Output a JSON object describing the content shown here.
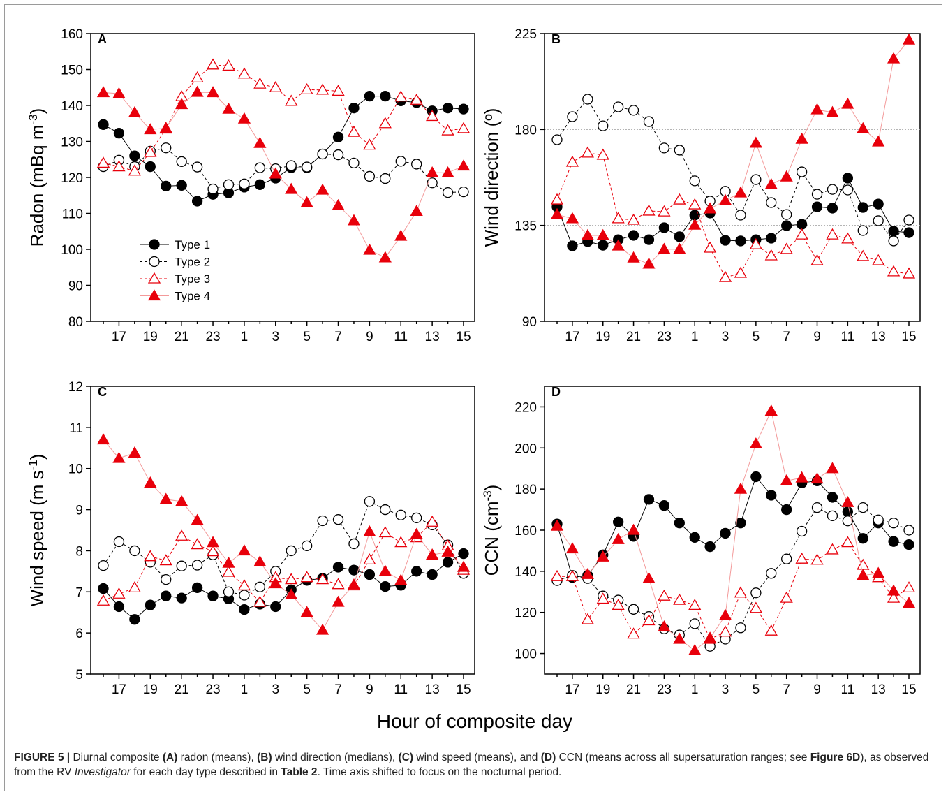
{
  "chart_data": [
    {
      "type": "line",
      "label": "A",
      "ylabel": [
        "Radon (mBq m",
        "-3",
        ")"
      ],
      "categories": [
        null,
        "17",
        null,
        "19",
        null,
        "21",
        null,
        "23",
        null,
        "1",
        null,
        "3",
        null,
        "5",
        null,
        "7",
        null,
        "9",
        null,
        "11",
        null,
        "13",
        null,
        "15"
      ],
      "ylim": [
        80,
        160
      ],
      "yticks": [
        80,
        90,
        100,
        110,
        120,
        130,
        140,
        150,
        160
      ],
      "legend": "lower left",
      "series": [
        {
          "name": "Type 1",
          "color": "#000000",
          "line_color": "#000000",
          "marker": "circle",
          "filled": true,
          "dashed": false,
          "values": [
            134.7,
            132.3,
            126,
            123,
            117.6,
            117.8,
            113.4,
            115.3,
            115.7,
            117.3,
            118,
            119.8,
            122.7,
            122.7,
            126.5,
            131.2,
            139.3,
            142.6,
            142.6,
            141.3,
            140.8,
            138.5,
            139.3,
            139
          ]
        },
        {
          "name": "Type 2",
          "color": "#000000",
          "line_color": "#000000",
          "marker": "circle",
          "filled": false,
          "dashed": true,
          "values": [
            123,
            124.8,
            123,
            127.3,
            128.2,
            124.4,
            122.9,
            116.8,
            118,
            118.2,
            122.7,
            122.4,
            123.3,
            122.9,
            126.5,
            126.3,
            124,
            120.3,
            119.7,
            124.5,
            123.7,
            118.5,
            115.8,
            116
          ]
        },
        {
          "name": "Type 3",
          "color": "#e8000b",
          "line_color": "#e8000b",
          "marker": "triangle",
          "filled": false,
          "dashed": true,
          "values": [
            124,
            123,
            121.8,
            127,
            133.5,
            142.5,
            147.7,
            151.3,
            151,
            148.8,
            146,
            145,
            141.2,
            144.4,
            144.3,
            144,
            132.6,
            129,
            135,
            142.4,
            141.5,
            137,
            133,
            133.6
          ]
        },
        {
          "name": "Type 4",
          "color": "#e8000b",
          "line_color": "#f39a9a",
          "marker": "triangle",
          "filled": true,
          "dashed": false,
          "values": [
            143.6,
            143.3,
            138,
            133.3,
            133.7,
            140.3,
            143.7,
            143.6,
            139,
            136.3,
            129.5,
            121,
            116.7,
            113,
            116.5,
            112.2,
            108,
            99.8,
            97.7,
            103.7,
            110.6,
            121.3,
            121.3,
            123.2
          ]
        }
      ]
    },
    {
      "type": "line",
      "label": "B",
      "ylabel": [
        "Wind direction (º)"
      ],
      "categories": [
        null,
        "17",
        null,
        "19",
        null,
        "21",
        null,
        "23",
        null,
        "1",
        null,
        "3",
        null,
        "5",
        null,
        "7",
        null,
        "9",
        null,
        "11",
        null,
        "13",
        null,
        "15"
      ],
      "ylim": [
        90,
        225
      ],
      "yticks": [
        90,
        135,
        180,
        225
      ],
      "reference_lines": [
        135,
        180
      ],
      "series": [
        {
          "color": "#000000",
          "line_color": "#000000",
          "marker": "circle",
          "filled": true,
          "dashed": false,
          "values": [
            143.7,
            125.4,
            127.4,
            125.7,
            128.3,
            130.3,
            128.3,
            133.9,
            129.7,
            139.8,
            140.8,
            128,
            127.7,
            128.3,
            129,
            134.9,
            135.5,
            143.7,
            143.1,
            157.2,
            143.4,
            145,
            132.3,
            131.6
          ]
        },
        {
          "color": "#000000",
          "line_color": "#000000",
          "marker": "circle",
          "filled": false,
          "dashed": true,
          "values": [
            175.2,
            186,
            194.2,
            181.7,
            190.6,
            189,
            183.7,
            171.3,
            170.3,
            155.9,
            146.4,
            151,
            139.8,
            156.5,
            145.7,
            140.1,
            160.1,
            149.6,
            151.9,
            151.6,
            132.6,
            137.2,
            127.7,
            137.5
          ]
        },
        {
          "color": "#e8000b",
          "line_color": "#e8000b",
          "marker": "triangle",
          "filled": false,
          "dashed": true,
          "values": [
            147,
            164.7,
            169,
            168,
            138.2,
            137.5,
            141.8,
            141.4,
            147,
            144.7,
            124.4,
            110.6,
            112.6,
            126,
            120.8,
            123.8,
            130.6,
            118.5,
            130.6,
            128.7,
            120.5,
            118.5,
            113.3,
            112.3
          ]
        },
        {
          "color": "#e8000b",
          "line_color": "#f39a9a",
          "marker": "triangle",
          "filled": true,
          "dashed": false,
          "values": [
            140.1,
            138.2,
            130.3,
            130.3,
            125.4,
            119.8,
            116.9,
            123.8,
            123.8,
            135.2,
            142.8,
            146.7,
            150.3,
            173.6,
            154.2,
            157.8,
            175.5,
            189.3,
            188,
            191.9,
            180.4,
            174.2,
            213.2,
            222
          ]
        }
      ]
    },
    {
      "type": "line",
      "label": "C",
      "ylabel": [
        "Wind speed (m s",
        "-1",
        ")"
      ],
      "categories": [
        null,
        "17",
        null,
        "19",
        null,
        "21",
        null,
        "23",
        null,
        "1",
        null,
        "3",
        null,
        "5",
        null,
        "7",
        null,
        "9",
        null,
        "11",
        null,
        "13",
        null,
        "15"
      ],
      "ylim": [
        5,
        12
      ],
      "yticks": [
        5,
        6,
        7,
        8,
        9,
        10,
        11,
        12
      ],
      "series": [
        {
          "color": "#000000",
          "line_color": "#000000",
          "marker": "circle",
          "filled": true,
          "dashed": false,
          "values": [
            7.08,
            6.64,
            6.33,
            6.68,
            6.9,
            6.85,
            7.1,
            6.9,
            6.83,
            6.57,
            6.7,
            6.64,
            7.05,
            7.28,
            7.33,
            7.6,
            7.53,
            7.42,
            7.13,
            7.16,
            7.5,
            7.42,
            7.72,
            7.93
          ]
        },
        {
          "color": "#000000",
          "line_color": "#000000",
          "marker": "circle",
          "filled": false,
          "dashed": true,
          "values": [
            7.64,
            8.22,
            8,
            7.72,
            7.3,
            7.63,
            7.65,
            7.9,
            7,
            6.92,
            7.12,
            7.5,
            8,
            8.12,
            8.73,
            8.76,
            8.17,
            9.2,
            9,
            8.87,
            8.8,
            8.63,
            8.14,
            7.45
          ]
        },
        {
          "color": "#e8000b",
          "line_color": "#e8000b",
          "marker": "triangle",
          "filled": false,
          "dashed": true,
          "values": [
            6.78,
            6.95,
            7.1,
            7.86,
            7.76,
            8.36,
            8.15,
            7.98,
            7.48,
            7.15,
            6.75,
            7.35,
            7.3,
            7.35,
            7.3,
            7.18,
            7.15,
            7.78,
            8.44,
            8.2,
            8.32,
            8.7,
            8.12,
            7.53
          ]
        },
        {
          "color": "#e8000b",
          "line_color": "#f39a9a",
          "marker": "triangle",
          "filled": true,
          "dashed": false,
          "values": [
            10.7,
            10.25,
            10.38,
            9.65,
            9.25,
            9.2,
            8.74,
            8.2,
            7.7,
            8,
            7.73,
            7.2,
            6.93,
            6.5,
            6.07,
            6.75,
            7.17,
            8.46,
            7.5,
            7.28,
            8.4,
            7.9,
            7.97,
            7.6
          ]
        }
      ]
    },
    {
      "type": "line",
      "label": "D",
      "ylabel": [
        "CCN (cm",
        "-3",
        ")"
      ],
      "categories": [
        null,
        "17",
        null,
        "19",
        null,
        "21",
        null,
        "23",
        null,
        "1",
        null,
        "3",
        null,
        "5",
        null,
        "7",
        null,
        "9",
        null,
        "11",
        null,
        "13",
        null,
        "15"
      ],
      "ylim": [
        90,
        230
      ],
      "yticks": [
        100,
        120,
        140,
        160,
        180,
        200,
        220
      ],
      "series": [
        {
          "color": "#000000",
          "line_color": "#000000",
          "marker": "circle",
          "filled": true,
          "dashed": false,
          "values": [
            163,
            137,
            138,
            148,
            164,
            157,
            175,
            172,
            163.5,
            156.5,
            152,
            158.5,
            163.5,
            186,
            177,
            170,
            183,
            184,
            176,
            169,
            156,
            163.5,
            154.5,
            153
          ]
        },
        {
          "color": "#000000",
          "line_color": "#000000",
          "marker": "circle",
          "filled": false,
          "dashed": true,
          "values": [
            135.5,
            138,
            136.5,
            128,
            126,
            121.5,
            118,
            112,
            109,
            114.5,
            103.5,
            107,
            112.5,
            129.5,
            139,
            146,
            159.5,
            171,
            167,
            164.5,
            171,
            165,
            163.5,
            160
          ]
        },
        {
          "color": "#e8000b",
          "line_color": "#e8000b",
          "marker": "triangle",
          "filled": false,
          "dashed": true,
          "values": [
            137.5,
            137.5,
            116.5,
            126.5,
            123.5,
            109.5,
            116,
            128,
            126,
            123.5,
            107,
            110.5,
            129.5,
            122,
            111,
            127,
            146,
            145.5,
            150.5,
            154,
            143,
            137,
            127,
            132
          ]
        },
        {
          "color": "#e8000b",
          "line_color": "#f39a9a",
          "marker": "triangle",
          "filled": true,
          "dashed": false,
          "values": [
            162,
            151,
            138.5,
            147,
            155.5,
            160,
            136.5,
            113,
            107,
            101.5,
            107.5,
            118.5,
            180,
            202,
            218,
            184,
            185.5,
            185,
            190,
            173.5,
            138,
            139,
            130.5,
            124.5
          ]
        }
      ]
    }
  ],
  "xlabel": "Hour of composite day",
  "caption": [
    "FIGURE 5 |",
    "Diurnal composite",
    "(A)",
    "radon (means),",
    "(B)",
    "wind direction (medians),",
    "(C)",
    "wind speed (means), and",
    "(D)",
    "CCN (means across all supersaturation ranges; see",
    "Figure 6D",
    "), as observed from the RV",
    "Investigator",
    "for each day type described in",
    "Table 2",
    ". Time axis shifted to focus on the nocturnal period."
  ]
}
